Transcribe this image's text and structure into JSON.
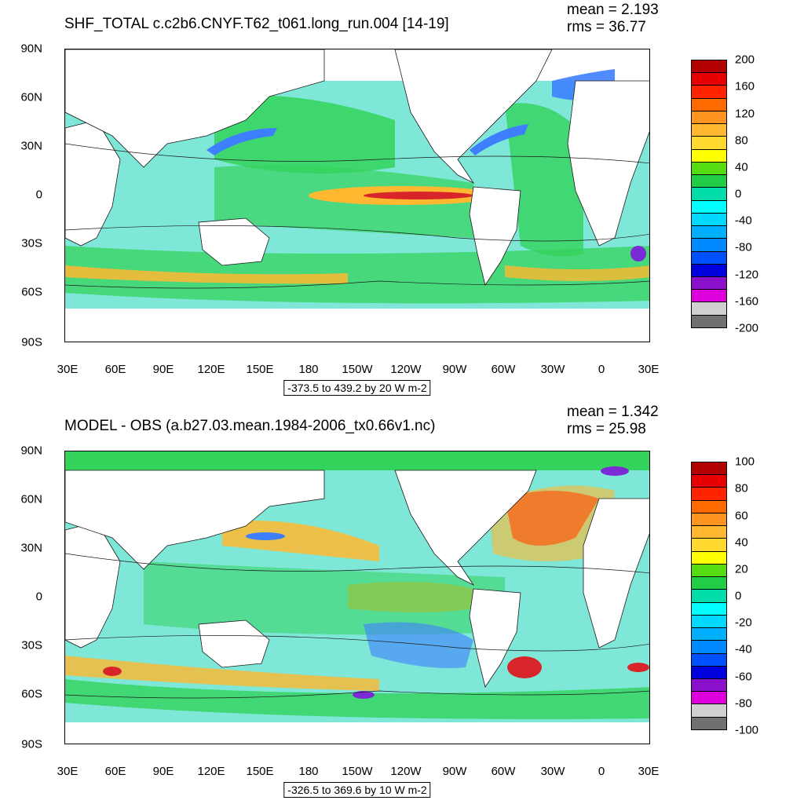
{
  "panels": [
    {
      "title": "SHF_TOTAL c.c2b6.CNYF.T62_t061.long_run.004 [14-19]",
      "mean": "mean = 2.193",
      "rms": "rms = 36.77",
      "range": "-373.5 to 439.2 by 20 W m-2",
      "lat_labels": [
        "90N",
        "60N",
        "30N",
        "0",
        "30S",
        "60S",
        "90S"
      ],
      "lon_labels": [
        "30E",
        "60E",
        "90E",
        "120E",
        "150E",
        "180",
        "150W",
        "120W",
        "90W",
        "60W",
        "30W",
        "0",
        "30E"
      ],
      "legend_labels": [
        "200",
        "160",
        "120",
        "80",
        "40",
        "0",
        "-40",
        "-80",
        "-120",
        "-160",
        "-200"
      ],
      "legend_colors": [
        "#b30000",
        "#e60000",
        "#ff2400",
        "#ff6a00",
        "#ff9420",
        "#ffb830",
        "#ffd830",
        "#ffff00",
        "#55dd11",
        "#22cc44",
        "#00ddaa",
        "#00ffff",
        "#00d8ff",
        "#00b0ff",
        "#0088ff",
        "#0050ff",
        "#0000dd",
        "#8a10cc",
        "#dd00dd",
        "#d0d0d0",
        "#707070"
      ]
    },
    {
      "title": "MODEL - OBS (a.b27.03.mean.1984-2006_tx0.66v1.nc)",
      "mean": "mean = 1.342",
      "rms": "rms = 25.98",
      "range": "-326.5 to 369.6 by 10 W m-2",
      "lat_labels": [
        "90N",
        "60N",
        "30N",
        "0",
        "30S",
        "60S",
        "90S"
      ],
      "lon_labels": [
        "30E",
        "60E",
        "90E",
        "120E",
        "150E",
        "180",
        "150W",
        "120W",
        "90W",
        "60W",
        "30W",
        "0",
        "30E"
      ],
      "legend_labels": [
        "100",
        "80",
        "60",
        "40",
        "20",
        "0",
        "-20",
        "-40",
        "-60",
        "-80",
        "-100"
      ],
      "legend_colors": [
        "#b30000",
        "#e60000",
        "#ff2400",
        "#ff6a00",
        "#ff9420",
        "#ffb830",
        "#ffd830",
        "#ffff00",
        "#55dd11",
        "#22cc44",
        "#00ddaa",
        "#00ffff",
        "#00d8ff",
        "#00b0ff",
        "#0088ff",
        "#0050ff",
        "#0000dd",
        "#8a10cc",
        "#dd00dd",
        "#d0d0d0",
        "#707070"
      ]
    }
  ],
  "map_colors": {
    "ocean_base": "#7fe7d8",
    "ocean_green": "#33d35c",
    "warm": "#ffb830",
    "hot": "#d8252a",
    "cold": "#3d7fff",
    "very_cold": "#7a2bd6",
    "land": "#ffffff",
    "contour": "#1a1a1a"
  }
}
